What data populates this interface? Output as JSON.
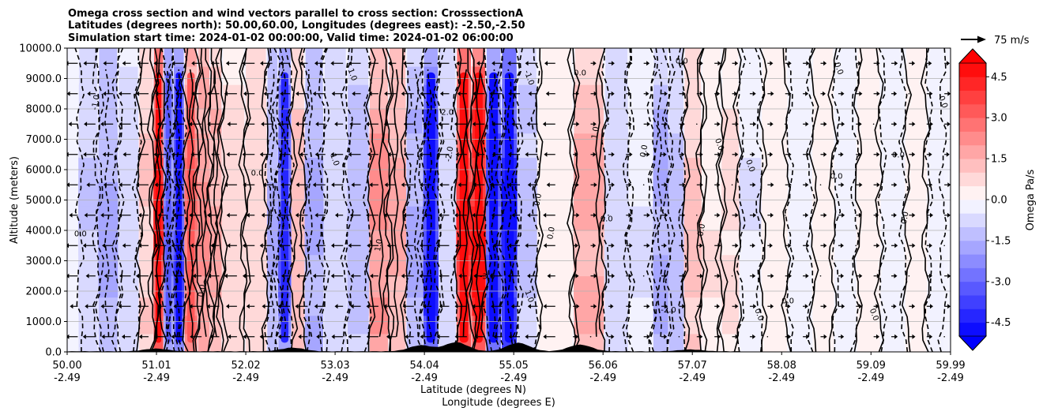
{
  "chart_data": {
    "type": "heatmap",
    "title_lines": [
      "Omega cross section and wind vectors parallel to cross section: CrosssectionA",
      "Latitudes (degrees north): 50.00,60.00, Longitudes (degrees east): -2.50,-2.50",
      "Simulation start time: 2024-01-02 00:00:00, Valid time: 2024-01-02 06:00:00"
    ],
    "ylabel": "Altitude (meters)",
    "xlabel_lat": "Latitude (degrees N)",
    "xlabel_lon": "Longitude (degrees E)",
    "ylim": [
      0,
      10000
    ],
    "xlim": [
      50.0,
      59.99
    ],
    "y_ticks": [
      "0.0",
      "1000.0",
      "2000.0",
      "3000.0",
      "4000.0",
      "5000.0",
      "6000.0",
      "7000.0",
      "8000.0",
      "9000.0",
      "10000.0"
    ],
    "y_tick_values": [
      0,
      1000,
      2000,
      3000,
      4000,
      5000,
      6000,
      7000,
      8000,
      9000,
      10000
    ],
    "x_tick_values": [
      50.0,
      51.01,
      52.02,
      53.03,
      54.04,
      55.05,
      56.06,
      57.07,
      58.08,
      59.09,
      59.99
    ],
    "x_tick_lat": [
      "50.00",
      "51.01",
      "52.02",
      "53.03",
      "54.04",
      "55.05",
      "56.06",
      "57.07",
      "58.08",
      "59.09",
      "59.99"
    ],
    "x_tick_lon": [
      "-2.49",
      "-2.49",
      "-2.49",
      "-2.49",
      "-2.49",
      "-2.49",
      "-2.49",
      "-2.49",
      "-2.49",
      "-2.49",
      "-2.49"
    ],
    "colorbar": {
      "label": "Omega Pa/s",
      "range": [
        -5.0,
        5.0
      ],
      "ticks": [
        "-4.5",
        "-3.0",
        "-1.5",
        "0.0",
        "1.5",
        "3.0",
        "4.5"
      ],
      "tick_values": [
        -4.5,
        -3.0,
        -1.5,
        0.0,
        1.5,
        3.0,
        4.5
      ],
      "levels": 20,
      "extend": "both",
      "colormap": "bwr"
    },
    "quiver_key": "75 m/s",
    "omega_bands": [
      {
        "lat": 50.25,
        "amp": -1.2
      },
      {
        "lat": 50.45,
        "amp": -2.0
      },
      {
        "lat": 50.7,
        "amp": -1.0
      },
      {
        "lat": 50.92,
        "amp": 1.2
      },
      {
        "lat": 51.03,
        "amp": 4.5
      },
      {
        "lat": 51.15,
        "amp": -3.0
      },
      {
        "lat": 51.25,
        "amp": -4.0
      },
      {
        "lat": 51.4,
        "amp": 3.0
      },
      {
        "lat": 51.55,
        "amp": 2.5
      },
      {
        "lat": 51.68,
        "amp": 2.0
      },
      {
        "lat": 51.82,
        "amp": 1.0
      },
      {
        "lat": 52.2,
        "amp": 1.0
      },
      {
        "lat": 52.32,
        "amp": -2.0
      },
      {
        "lat": 52.45,
        "amp": -3.5
      },
      {
        "lat": 52.62,
        "amp": 1.5
      },
      {
        "lat": 52.75,
        "amp": -2.0
      },
      {
        "lat": 53.05,
        "amp": -1.0
      },
      {
        "lat": 53.28,
        "amp": -1.5
      },
      {
        "lat": 53.55,
        "amp": 2.5
      },
      {
        "lat": 53.72,
        "amp": 2.0
      },
      {
        "lat": 53.95,
        "amp": -2.0
      },
      {
        "lat": 54.1,
        "amp": -4.5
      },
      {
        "lat": 54.3,
        "amp": -1.0
      },
      {
        "lat": 54.5,
        "amp": 4.5
      },
      {
        "lat": 54.65,
        "amp": 5.5
      },
      {
        "lat": 54.82,
        "amp": -4.0
      },
      {
        "lat": 55.0,
        "amp": -5.0
      },
      {
        "lat": 55.18,
        "amp": -1.5
      },
      {
        "lat": 55.45,
        "amp": 0.5
      },
      {
        "lat": 56.0,
        "amp": 2.0
      },
      {
        "lat": 56.15,
        "amp": -1.0
      },
      {
        "lat": 56.55,
        "amp": -0.6
      },
      {
        "lat": 56.7,
        "amp": -2.0
      },
      {
        "lat": 56.9,
        "amp": -1.5
      },
      {
        "lat": 57.05,
        "amp": 1.5
      },
      {
        "lat": 57.3,
        "amp": 0.6
      },
      {
        "lat": 57.5,
        "amp": 0.7
      },
      {
        "lat": 57.7,
        "amp": -0.6
      },
      {
        "lat": 58.0,
        "amp": 0.4
      },
      {
        "lat": 58.3,
        "amp": -0.4
      },
      {
        "lat": 58.55,
        "amp": 0.5
      },
      {
        "lat": 58.8,
        "amp": -0.5
      },
      {
        "lat": 59.05,
        "amp": 0.4
      },
      {
        "lat": 59.35,
        "amp": -0.4
      },
      {
        "lat": 59.6,
        "amp": 0.5
      },
      {
        "lat": 59.85,
        "amp": -0.4
      }
    ],
    "terrain_peaks": [
      {
        "lat": 51.0,
        "height": 90
      },
      {
        "lat": 52.55,
        "height": 120
      },
      {
        "lat": 54.0,
        "height": 200
      },
      {
        "lat": 54.4,
        "height": 300
      },
      {
        "lat": 55.1,
        "height": 280
      },
      {
        "lat": 55.8,
        "height": 220
      },
      {
        "lat": 57.05,
        "height": 60
      }
    ],
    "contour_labels": [
      {
        "text": "0.0",
        "lat": 55.8,
        "alt": 9100
      },
      {
        "text": "0.0",
        "lat": 57.35,
        "alt": 6800
      },
      {
        "text": "0.0",
        "lat": 56.55,
        "alt": 6600
      },
      {
        "text": "0.0",
        "lat": 59.4,
        "alt": 6400
      },
      {
        "text": "0.0",
        "lat": 57.7,
        "alt": 6100
      },
      {
        "text": "0.0",
        "lat": 57.2,
        "alt": 4000
      },
      {
        "text": "0.0",
        "lat": 58.7,
        "alt": 5700
      },
      {
        "text": "0.0",
        "lat": 58.7,
        "alt": 9300
      },
      {
        "text": "1.0",
        "lat": 56.0,
        "alt": 7200
      },
      {
        "text": "0.0",
        "lat": 56.95,
        "alt": 9500
      },
      {
        "text": "0.0",
        "lat": 59.88,
        "alt": 8200
      },
      {
        "text": "0.0",
        "lat": 59.5,
        "alt": 4400
      },
      {
        "text": "0.0",
        "lat": 58.15,
        "alt": 1600
      },
      {
        "text": "0.0",
        "lat": 59.1,
        "alt": 1200
      },
      {
        "text": "0.0",
        "lat": 55.5,
        "alt": 3900
      },
      {
        "text": "0.0",
        "lat": 56.1,
        "alt": 4300
      },
      {
        "text": "1.0",
        "lat": 53.2,
        "alt": 9100
      },
      {
        "text": "-2.0",
        "lat": 54.35,
        "alt": 6500
      },
      {
        "text": "2.0",
        "lat": 54.3,
        "alt": 7800
      },
      {
        "text": "-1.0",
        "lat": 55.2,
        "alt": 9000
      },
      {
        "text": "-1.0",
        "lat": 50.35,
        "alt": 8200
      },
      {
        "text": "0.0",
        "lat": 52.15,
        "alt": 5800
      },
      {
        "text": "1.0",
        "lat": 53.0,
        "alt": 6300
      },
      {
        "text": "0.0",
        "lat": 51.55,
        "alt": 2000
      },
      {
        "text": "-3.0",
        "lat": 54.75,
        "alt": 2400
      },
      {
        "text": "1.0",
        "lat": 55.2,
        "alt": 1800
      },
      {
        "text": "0.0",
        "lat": 55.35,
        "alt": 5000
      },
      {
        "text": "-2.0",
        "lat": 56.8,
        "alt": 1300
      },
      {
        "text": "0.0",
        "lat": 57.8,
        "alt": 1200
      },
      {
        "text": "1.0",
        "lat": 53.55,
        "alt": 3500
      },
      {
        "text": "0.0",
        "lat": 50.15,
        "alt": 3800
      }
    ]
  }
}
